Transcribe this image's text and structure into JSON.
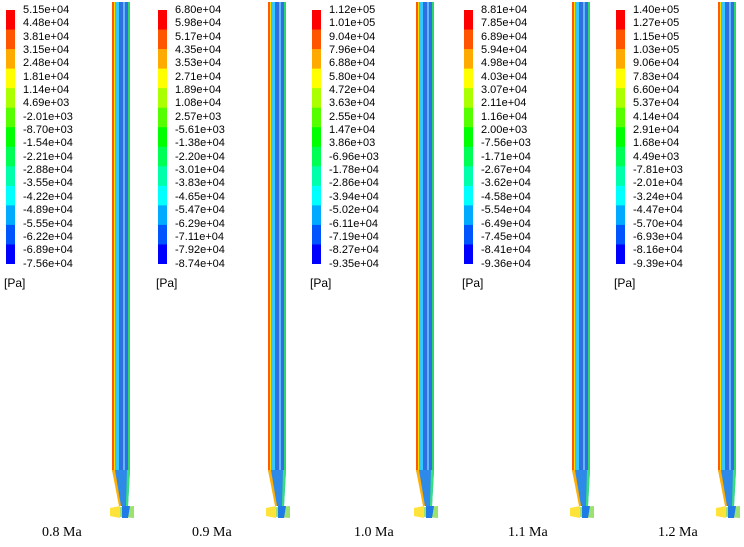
{
  "colors": [
    "#0000ff",
    "#0055ff",
    "#00aaff",
    "#00ffff",
    "#00ffaa",
    "#00ff55",
    "#00ff00",
    "#55ff00",
    "#aaff00",
    "#ffff00",
    "#ffaa00",
    "#ff5500",
    "#ff0000"
  ],
  "panels": [
    {
      "caption": "0.8 Ma",
      "unit": "[Pa]",
      "ticks": [
        "5.15e+04",
        "4.48e+04",
        "3.81e+04",
        "3.15e+04",
        "2.48e+04",
        "1.81e+04",
        "1.14e+04",
        "4.69e+03",
        "-2.01e+03",
        "-8.70e+03",
        "-1.54e+04",
        "-2.21e+04",
        "-2.88e+04",
        "-3.55e+04",
        "-4.22e+04",
        "-4.89e+04",
        "-5.55e+04",
        "-6.22e+04",
        "-6.89e+04",
        "-7.56e+04"
      ]
    },
    {
      "caption": "0.9 Ma",
      "unit": "[Pa]",
      "ticks": [
        "6.80e+04",
        "5.98e+04",
        "5.17e+04",
        "4.35e+04",
        "3.53e+04",
        "2.71e+04",
        "1.89e+04",
        "1.08e+04",
        "2.57e+03",
        "-5.61e+03",
        "-1.38e+04",
        "-2.20e+04",
        "-3.01e+04",
        "-3.83e+04",
        "-4.65e+04",
        "-5.47e+04",
        "-6.29e+04",
        "-7.11e+04",
        "-7.92e+04",
        "-8.74e+04"
      ]
    },
    {
      "caption": "1.0 Ma",
      "unit": "[Pa]",
      "ticks": [
        "1.12e+05",
        "1.01e+05",
        "9.04e+04",
        "7.96e+04",
        "6.88e+04",
        "5.80e+04",
        "4.72e+04",
        "3.63e+04",
        "2.55e+04",
        "1.47e+04",
        "3.86e+03",
        "-6.96e+03",
        "-1.78e+04",
        "-2.86e+04",
        "-3.94e+04",
        "-5.02e+04",
        "-6.11e+04",
        "-7.19e+04",
        "-8.27e+04",
        "-9.35e+04"
      ]
    },
    {
      "caption": "1.1 Ma",
      "unit": "[Pa]",
      "ticks": [
        "8.81e+04",
        "7.85e+04",
        "6.89e+04",
        "5.94e+04",
        "4.98e+04",
        "4.03e+04",
        "3.07e+04",
        "2.11e+04",
        "1.16e+04",
        "2.00e+03",
        "-7.56e+03",
        "-1.71e+04",
        "-2.67e+04",
        "-3.62e+04",
        "-4.58e+04",
        "-5.54e+04",
        "-6.49e+04",
        "-7.45e+04",
        "-8.41e+04",
        "-9.36e+04"
      ]
    },
    {
      "caption": "1.2 Ma",
      "unit": "[Pa]",
      "ticks": [
        "1.40e+05",
        "1.27e+05",
        "1.15e+05",
        "1.03e+05",
        "9.06e+04",
        "7.83e+04",
        "6.60e+04",
        "5.37e+04",
        "4.14e+04",
        "2.91e+04",
        "1.68e+04",
        "4.49e+03",
        "-7.81e+03",
        "-2.01e+04",
        "-3.24e+04",
        "-4.47e+04",
        "-5.70e+04",
        "-6.93e+04",
        "-8.16e+04",
        "-9.39e+04"
      ]
    }
  ]
}
